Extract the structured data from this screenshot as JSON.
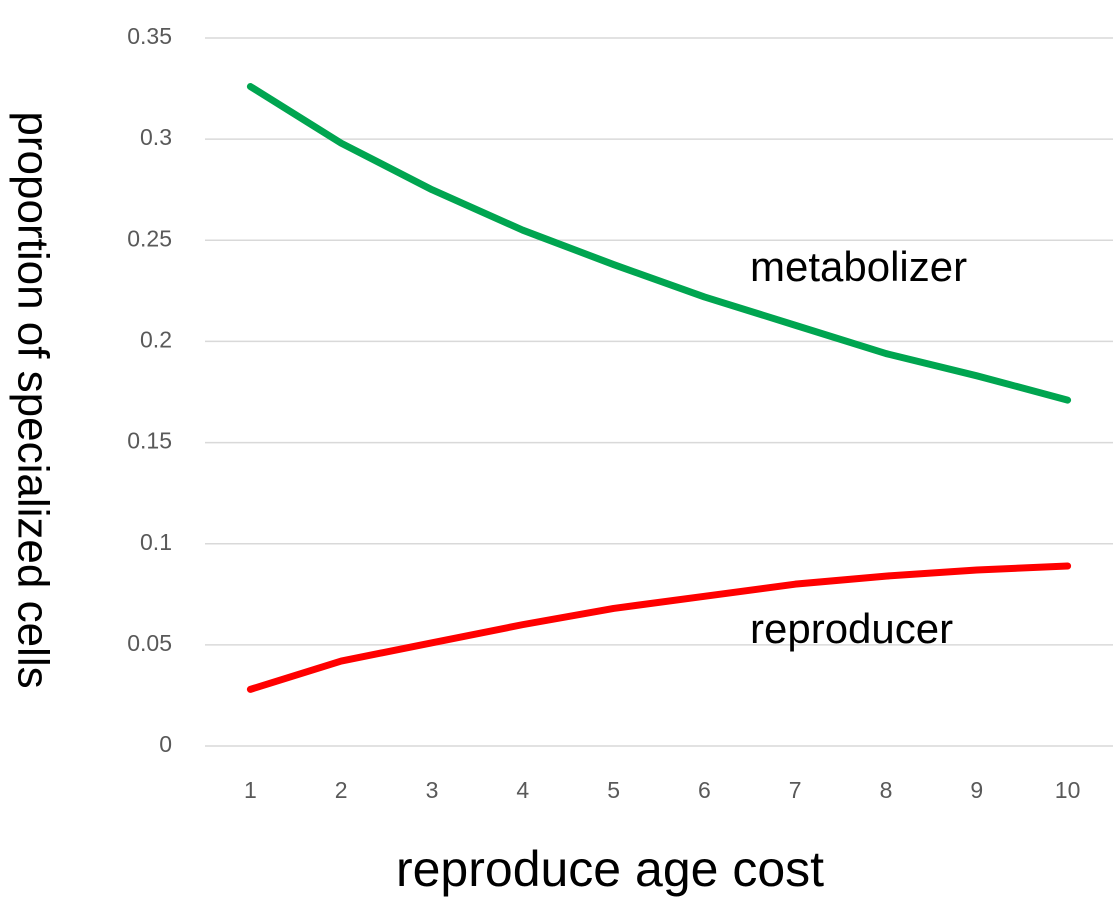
{
  "chart_data": {
    "type": "line",
    "x_label": "reproduce age cost",
    "y_label": "proportion of specialized cells",
    "categories": [
      "1",
      "2",
      "3",
      "4",
      "5",
      "6",
      "7",
      "8",
      "9",
      "10"
    ],
    "series": [
      {
        "name": "metabolizer",
        "color": "#00a550",
        "values": [
          0.326,
          0.298,
          0.275,
          0.255,
          0.238,
          0.222,
          0.208,
          0.194,
          0.183,
          0.171
        ]
      },
      {
        "name": "reproducer",
        "color": "#ff0000",
        "values": [
          0.028,
          0.042,
          0.051,
          0.06,
          0.068,
          0.074,
          0.08,
          0.084,
          0.087,
          0.089
        ]
      }
    ],
    "ylim": [
      0,
      0.35
    ],
    "yticks": [
      0,
      0.05,
      0.1,
      0.15,
      0.2,
      0.25,
      0.3,
      0.35
    ],
    "grid": true
  }
}
